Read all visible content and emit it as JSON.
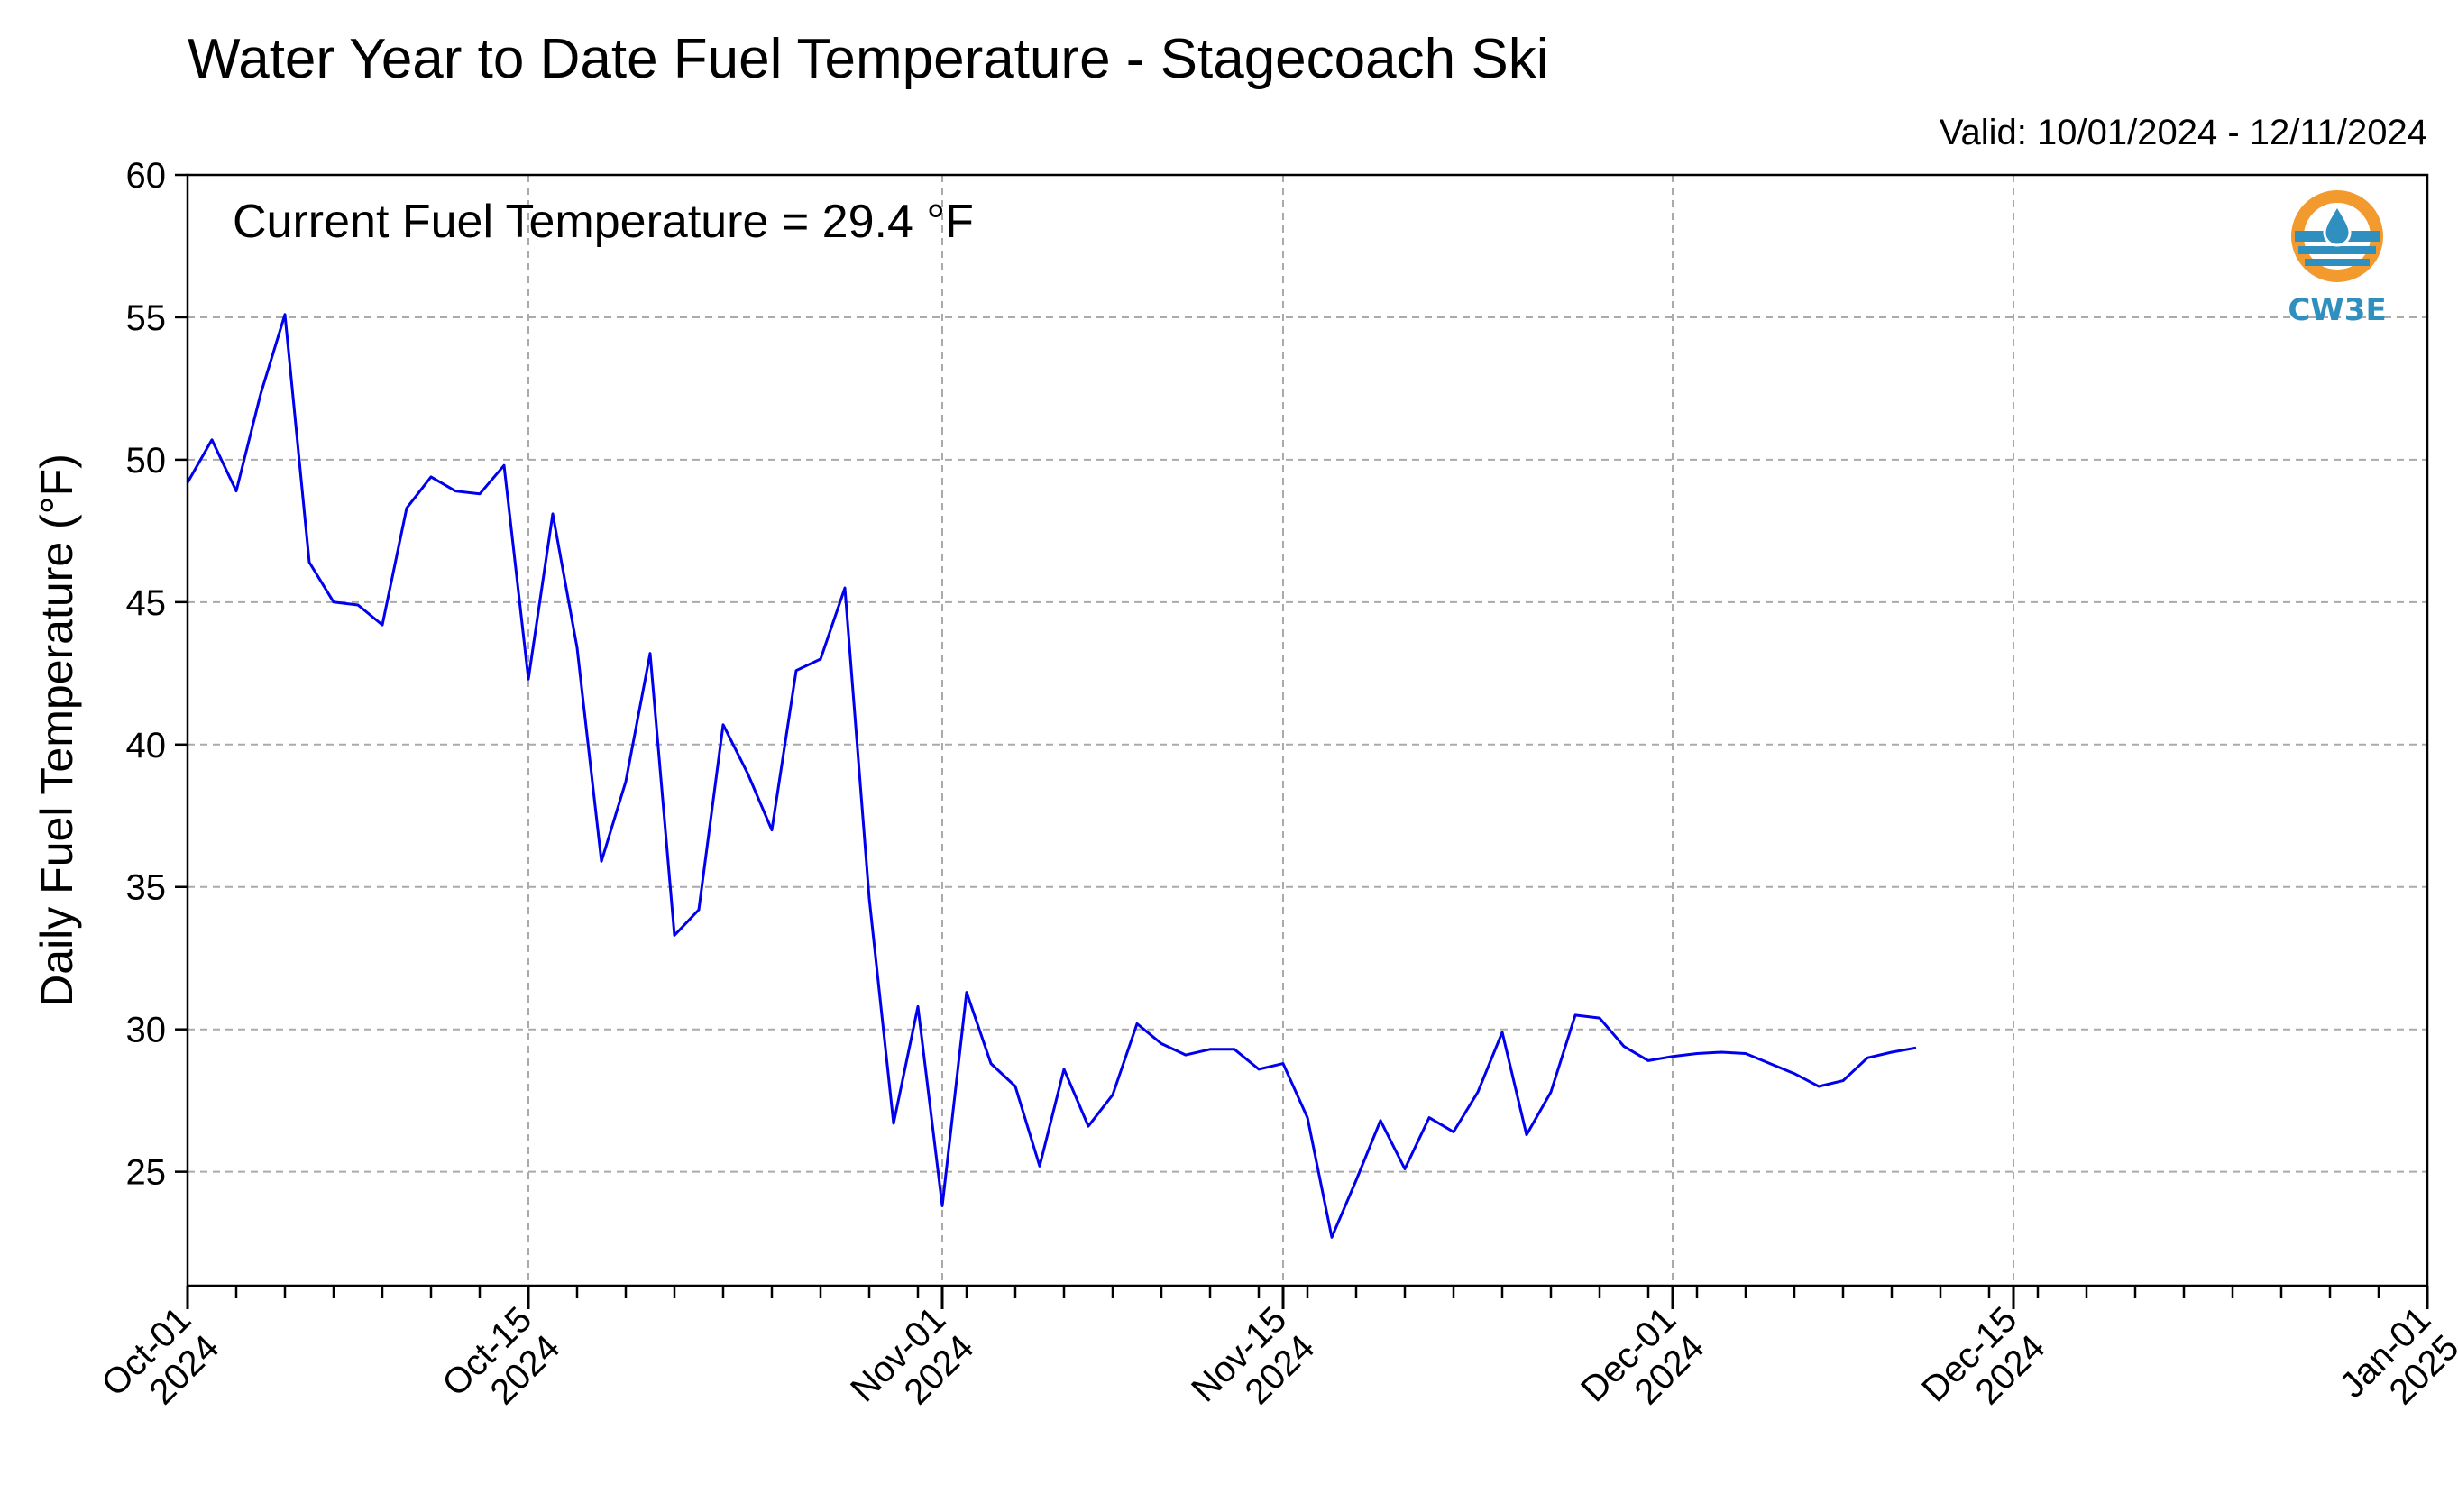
{
  "chart_data": {
    "type": "line",
    "title": "Water Year to Date Fuel Temperature - Stagecoach Ski",
    "subtitle": "Valid: 10/01/2024 - 12/11/2024",
    "annotation": "Current Fuel Temperature = 29.4 °F",
    "xlabel": "",
    "ylabel": "Daily Fuel Temperature (°F)",
    "xlim": [
      "2024-10-01",
      "2025-01-01"
    ],
    "ylim": [
      21,
      60
    ],
    "yticks": [
      25,
      30,
      35,
      40,
      45,
      50,
      55,
      60
    ],
    "xticks": [
      {
        "date": "2024-10-01",
        "label1": "Oct-01",
        "label2": "2024"
      },
      {
        "date": "2024-10-15",
        "label1": "Oct-15",
        "label2": "2024"
      },
      {
        "date": "2024-11-01",
        "label1": "Nov-01",
        "label2": "2024"
      },
      {
        "date": "2024-11-15",
        "label1": "Nov-15",
        "label2": "2024"
      },
      {
        "date": "2024-12-01",
        "label1": "Dec-01",
        "label2": "2024"
      },
      {
        "date": "2024-12-15",
        "label1": "Dec-15",
        "label2": "2024"
      },
      {
        "date": "2025-01-01",
        "label1": "Jan-01",
        "label2": "2025"
      }
    ],
    "grid": true,
    "line_color": "#0000ee",
    "series": [
      {
        "x": [
          "2024-10-01",
          "2024-10-02",
          "2024-10-03",
          "2024-10-04",
          "2024-10-05",
          "2024-10-06",
          "2024-10-07",
          "2024-10-08",
          "2024-10-09",
          "2024-10-10",
          "2024-10-11",
          "2024-10-12",
          "2024-10-13",
          "2024-10-14",
          "2024-10-15",
          "2024-10-16",
          "2024-10-17",
          "2024-10-18",
          "2024-10-19",
          "2024-10-20",
          "2024-10-21",
          "2024-10-22",
          "2024-10-23",
          "2024-10-24",
          "2024-10-25",
          "2024-10-26",
          "2024-10-27",
          "2024-10-28",
          "2024-10-29",
          "2024-10-30",
          "2024-10-31",
          "2024-11-01",
          "2024-11-02",
          "2024-11-03",
          "2024-11-04",
          "2024-11-05",
          "2024-11-06",
          "2024-11-07",
          "2024-11-08",
          "2024-11-09",
          "2024-11-10",
          "2024-11-11",
          "2024-11-12",
          "2024-11-13",
          "2024-11-14",
          "2024-11-15",
          "2024-11-16",
          "2024-11-17",
          "2024-11-18",
          "2024-11-19",
          "2024-11-20",
          "2024-11-21",
          "2024-11-22",
          "2024-11-23",
          "2024-11-24",
          "2024-11-25",
          "2024-11-26",
          "2024-11-27",
          "2024-11-28",
          "2024-11-29",
          "2024-11-30",
          "2024-12-01",
          "2024-12-02",
          "2024-12-03",
          "2024-12-04",
          "2024-12-05",
          "2024-12-06",
          "2024-12-07",
          "2024-12-08",
          "2024-12-09",
          "2024-12-10",
          "2024-12-11"
        ],
        "values": [
          49.2,
          50.7,
          48.9,
          52.3,
          55.1,
          46.4,
          45.0,
          44.9,
          44.2,
          48.3,
          49.4,
          48.9,
          48.8,
          49.8,
          42.3,
          48.1,
          43.4,
          35.9,
          38.7,
          43.2,
          33.3,
          34.2,
          40.7,
          39.0,
          37.0,
          42.6,
          43.0,
          45.5,
          34.6,
          26.7,
          30.8,
          23.8,
          31.3,
          28.8,
          28.0,
          25.2,
          28.6,
          26.6,
          27.7,
          30.2,
          29.5,
          29.1,
          29.3,
          29.3,
          28.6,
          28.8,
          26.9,
          22.7,
          24.7,
          26.8,
          25.1,
          26.9,
          26.4,
          27.8,
          29.9,
          26.3,
          27.8,
          30.5,
          30.4,
          29.4,
          28.9,
          29.05,
          29.15,
          29.2,
          29.15,
          28.8,
          28.45,
          28.0,
          28.2,
          29.0,
          29.2,
          29.35
        ]
      }
    ]
  },
  "logo": {
    "text": "CW3E",
    "ring_color": "#f29a2e",
    "water_color": "#2f8fbf",
    "text_color": "#2f8fbf",
    "icon": "water-drop-icon"
  }
}
